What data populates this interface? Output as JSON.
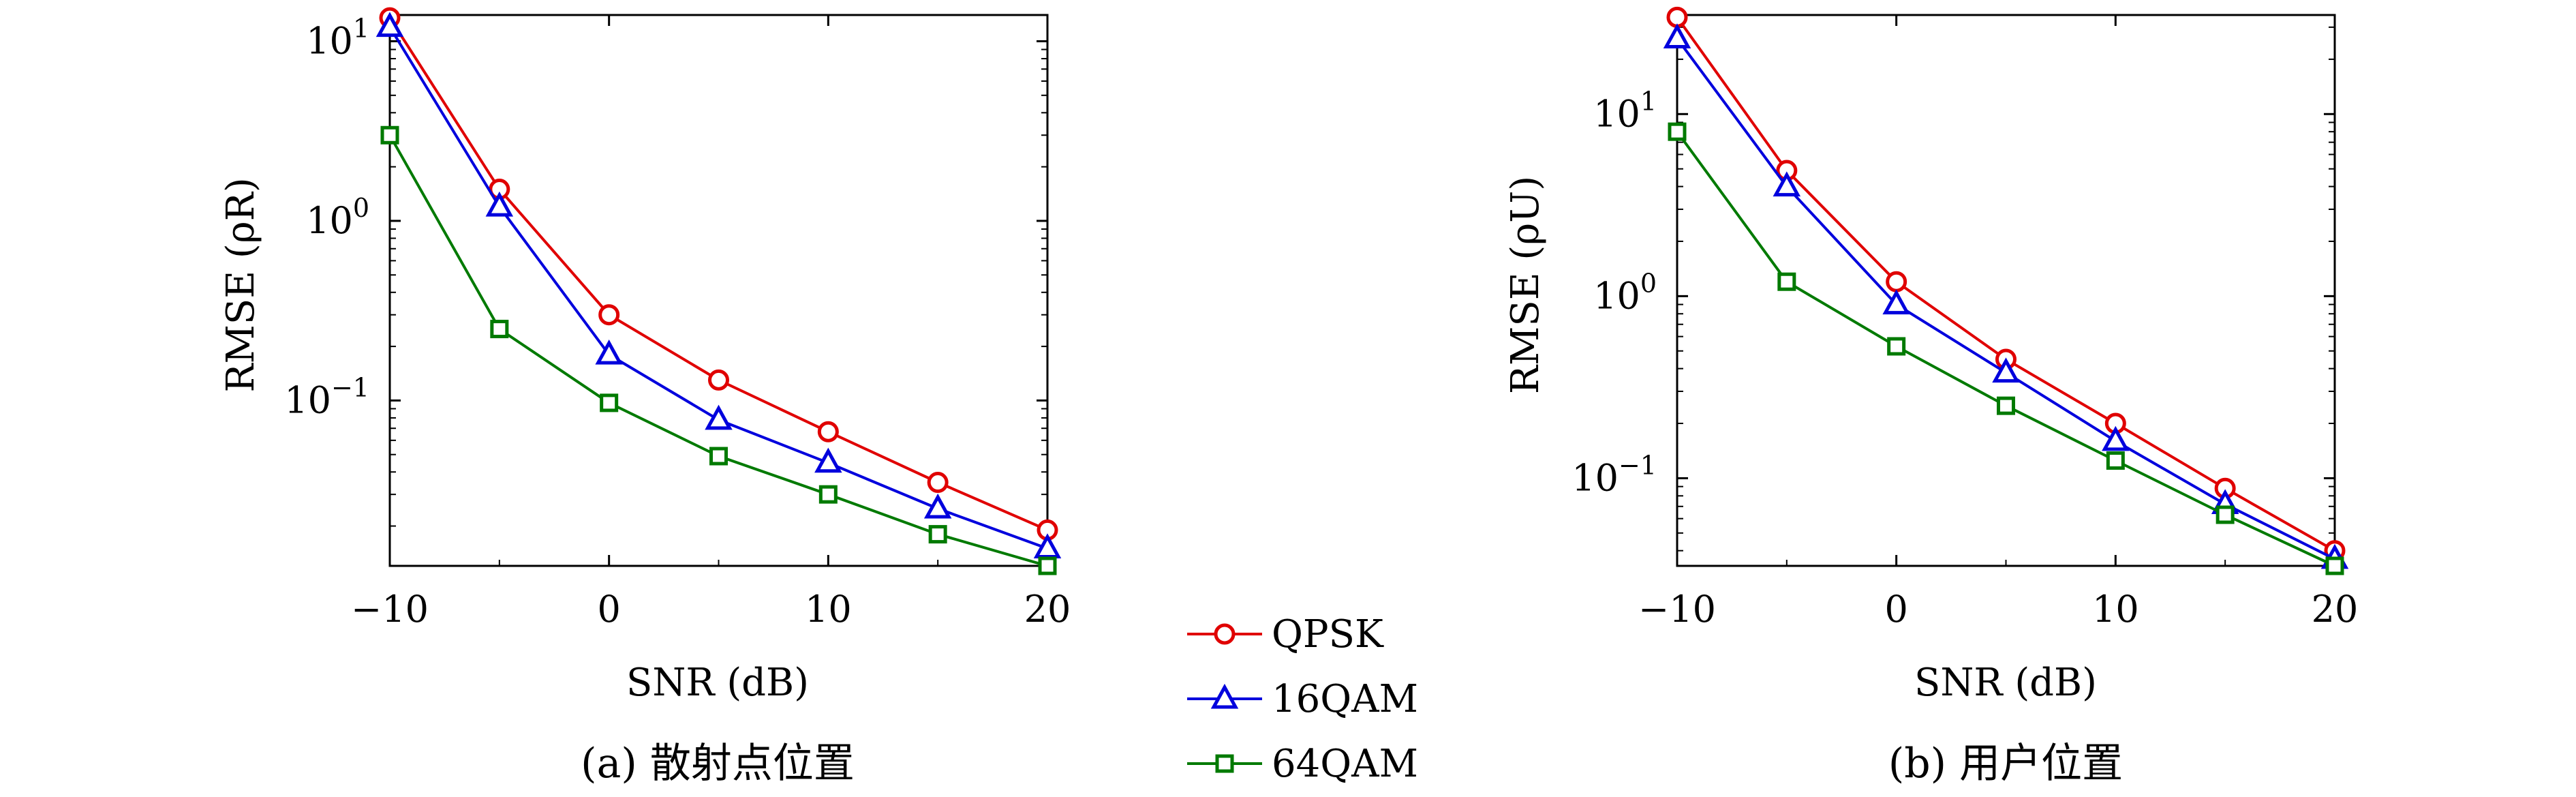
{
  "legend": [
    {
      "name": "QPSK",
      "color": "#e00000",
      "marker": "circle"
    },
    {
      "name": "16QAM",
      "color": "#0000dd",
      "marker": "triangle"
    },
    {
      "name": "64QAM",
      "color": "#007a00",
      "marker": "square"
    }
  ],
  "chart_data": [
    {
      "type": "line",
      "caption": "(a) 散射点位置",
      "xlabel": "SNR (dB)",
      "ylabel": "RMSE (ρR)",
      "yscale": "log",
      "x": [
        -10,
        -5,
        0,
        5,
        10,
        15,
        20
      ],
      "xticks": [
        "−10",
        "0",
        "10",
        "20"
      ],
      "yticks": [
        {
          "base": "10",
          "exp": "1"
        },
        {
          "base": "10",
          "exp": "0"
        },
        {
          "base": "10",
          "exp": "−1"
        }
      ],
      "xlim": [
        -10,
        20
      ],
      "ylim": [
        0.012,
        14
      ],
      "series": [
        {
          "name": "QPSK",
          "values": [
            13.5,
            1.5,
            0.3,
            0.13,
            0.067,
            0.035,
            0.019
          ]
        },
        {
          "name": "16QAM",
          "values": [
            12.0,
            1.2,
            0.18,
            0.078,
            0.045,
            0.025,
            0.015
          ]
        },
        {
          "name": "64QAM",
          "values": [
            3.0,
            0.25,
            0.097,
            0.049,
            0.03,
            0.018,
            0.012
          ]
        }
      ]
    },
    {
      "type": "line",
      "caption": "(b) 用户位置",
      "xlabel": "SNR (dB)",
      "ylabel": "RMSE (ρU)",
      "yscale": "log",
      "x": [
        -10,
        -5,
        0,
        5,
        10,
        15,
        20
      ],
      "xticks": [
        "−10",
        "0",
        "10",
        "20"
      ],
      "yticks": [
        {
          "base": "10",
          "exp": "1"
        },
        {
          "base": "10",
          "exp": "0"
        },
        {
          "base": "10",
          "exp": "−1"
        }
      ],
      "xlim": [
        -10,
        20
      ],
      "ylim": [
        0.033,
        35
      ],
      "series": [
        {
          "name": "QPSK",
          "values": [
            34,
            4.9,
            1.2,
            0.45,
            0.2,
            0.088,
            0.04
          ]
        },
        {
          "name": "16QAM",
          "values": [
            26,
            4.0,
            0.9,
            0.38,
            0.16,
            0.072,
            0.036
          ]
        },
        {
          "name": "64QAM",
          "values": [
            8.0,
            1.2,
            0.53,
            0.25,
            0.125,
            0.063,
            0.033
          ]
        }
      ]
    }
  ]
}
